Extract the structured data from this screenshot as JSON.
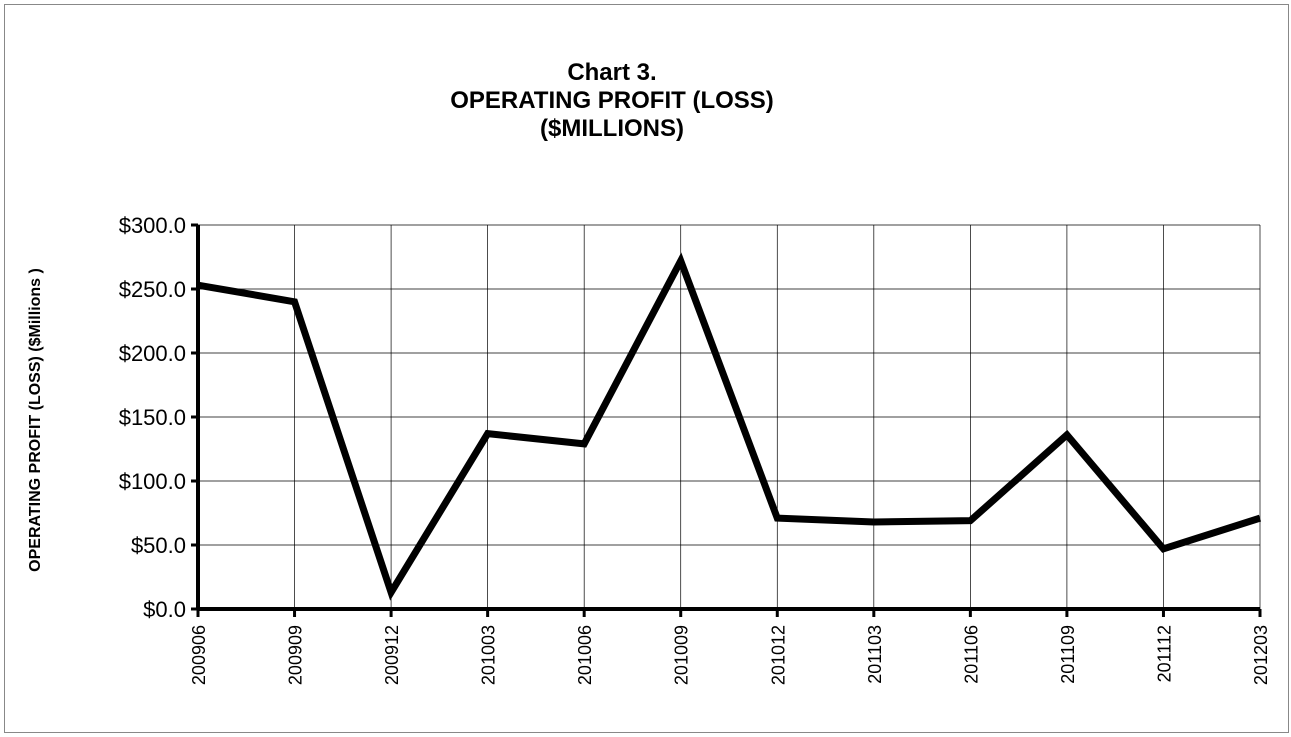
{
  "chart_data": {
    "type": "line",
    "title": [
      "Chart 3.",
      "OPERATING PROFIT (LOSS)",
      "($MILLIONS)"
    ],
    "y_label": "OPERATING PROFIT (LOSS) ($Millions )",
    "categories": [
      "200906",
      "200909",
      "200912",
      "201003",
      "201006",
      "201009",
      "201012",
      "201103",
      "201106",
      "201109",
      "201112",
      "201203"
    ],
    "series": [
      {
        "name": "OPERATING PROFIT (LOSS)",
        "color": "#000000",
        "values": [
          253,
          240,
          13,
          137,
          129,
          272,
          71,
          68,
          69,
          136,
          47,
          71
        ]
      }
    ],
    "ylim": [
      0,
      300
    ],
    "yticks": [
      {
        "value": 0,
        "label": "$0.0"
      },
      {
        "value": 50,
        "label": "$50.0"
      },
      {
        "value": 100,
        "label": "$100.0"
      },
      {
        "value": 150,
        "label": "$150.0"
      },
      {
        "value": 200,
        "label": "$200.0"
      },
      {
        "value": 250,
        "label": "$250.0"
      },
      {
        "value": 300,
        "label": "$300.0"
      }
    ],
    "grid": true
  }
}
